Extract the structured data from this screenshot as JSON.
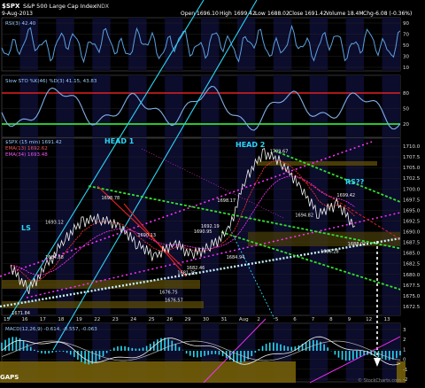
{
  "header": {
    "symbol": "$SPX",
    "name": "S&P 500 Large Cap Index",
    "exchange": "INDX",
    "date": "9-Aug-2013",
    "open_label": "Open",
    "open": "1696.10",
    "high_label": "High",
    "high": "1699.42",
    "low_label": "Low",
    "low": "1688.02",
    "close_label": "Close",
    "close": "1691.42",
    "volume_label": "Volume",
    "volume": "18.4M",
    "chg_label": "Chg",
    "chg": "-6.08 (-0.36%)"
  },
  "rsi": {
    "legend": "RSI(3) 42.40",
    "ticks": [
      "90",
      "70",
      "50",
      "30",
      "10"
    ]
  },
  "sto": {
    "legend": "Slow STO %K(46) %D(3) 41.15, 43.83",
    "ticks": [
      "80",
      "50",
      "20"
    ]
  },
  "price": {
    "legend": [
      "$SPX (15 min) 1691.42",
      "EMA(13) 1692.62",
      "EMA(34) 1693.48"
    ],
    "ticks": [
      "1710.0",
      "1707.5",
      "1705.0",
      "1702.5",
      "1700.0",
      "1697.5",
      "1695.0",
      "1692.5",
      "1690.0",
      "1687.5",
      "1685.0",
      "1682.5",
      "1680.0",
      "1677.5",
      "1675.0",
      "1672.5"
    ],
    "labels": {
      "head1": "HEAD 1",
      "head2": "HEAD 2",
      "ls": "LS",
      "rs": "RS??",
      "gaps": "GAPS"
    }
  },
  "macd": {
    "legend": "MACD(12,26,9) -0.614, -0.557, -0.063",
    "ticks": [
      "3",
      "2",
      "1",
      "0",
      "-1",
      "-2"
    ]
  },
  "xaxis": [
    "15",
    "16",
    "17",
    "18",
    "19",
    "22",
    "23",
    "24",
    "25",
    "26",
    "29",
    "30",
    "31",
    "Aug",
    "2",
    "5",
    "6",
    "7",
    "8",
    "9",
    "12",
    "13"
  ],
  "watermark": "© StockCharts.com",
  "colors": {
    "price_line": "#ffffff",
    "rsi_line": "#5aa0e0",
    "sto_line": "#7fb0e8",
    "ema13": "#ff3030",
    "ema34": "#ff30ff",
    "cyan": "#2bd6f5",
    "green": "#32e032",
    "red": "#e02020",
    "magenta": "#ff30ff",
    "gold": "#a89010"
  },
  "chart_data": {
    "type": "line",
    "title": "$SPX S&P 500 Large Cap Index",
    "x": [
      "Jul 15",
      "Jul 16",
      "Jul 17",
      "Jul 18",
      "Jul 19",
      "Jul 22",
      "Jul 23",
      "Jul 24",
      "Jul 25",
      "Jul 26",
      "Jul 29",
      "Jul 30",
      "Jul 31",
      "Aug 1",
      "Aug 2",
      "Aug 5",
      "Aug 6",
      "Aug 7",
      "Aug 8",
      "Aug 9"
    ],
    "series": [
      {
        "name": "$SPX (15 min)",
        "values": [
          1681.5,
          1676.5,
          1682.0,
          1688.5,
          1692.5,
          1693.0,
          1691.0,
          1687.0,
          1684.0,
          1687.5,
          1684.5,
          1686.5,
          1690.0,
          1703.0,
          1708.5,
          1706.0,
          1700.0,
          1694.0,
          1696.5,
          1691.4
        ]
      }
    ],
    "annotations": [
      {
        "text": "1671.84",
        "x": "Jul 16"
      },
      {
        "text": "1684.88",
        "x": "Jul 19"
      },
      {
        "text": "1693.12",
        "x": "Jul 19"
      },
      {
        "text": "1698.78",
        "x": "Jul 23"
      },
      {
        "text": "1690.13",
        "x": "Jul 25"
      },
      {
        "text": "1676.75",
        "x": "Jul 26"
      },
      {
        "text": "1676.57",
        "x": "Jul 29"
      },
      {
        "text": "1681.26",
        "x": "Jul 30"
      },
      {
        "text": "1682.46",
        "x": "Jul 30"
      },
      {
        "text": "1690.95",
        "x": "Jul 30"
      },
      {
        "text": "1692.19",
        "x": "Jul 31"
      },
      {
        "text": "1698.17",
        "x": "Jul 31"
      },
      {
        "text": "1684.94",
        "x": "Aug 1"
      },
      {
        "text": "1709.67",
        "x": "Aug 2"
      },
      {
        "text": "1694.82",
        "x": "Aug 6"
      },
      {
        "text": "1686.28",
        "x": "Aug 7"
      },
      {
        "text": "1699.42",
        "x": "Aug 8"
      },
      {
        "text": "1688.02",
        "x": "Aug 9"
      }
    ],
    "ylim": [
      1671,
      1712
    ],
    "grid": true
  }
}
